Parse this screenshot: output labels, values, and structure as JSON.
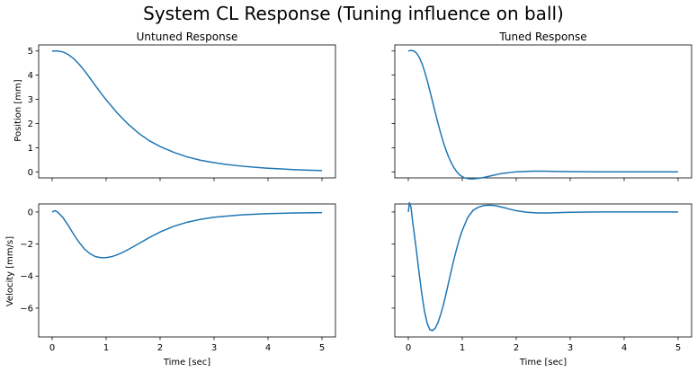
{
  "suptitle": "System CL Response (Tuning influence on ball)",
  "colors": {
    "line": "#1f77b4",
    "frame": "#000000"
  },
  "chart_data": [
    {
      "id": "untuned-position",
      "type": "line",
      "title": "Untuned Response",
      "xlabel": "",
      "ylabel": "Position [mm]",
      "xlim": [
        -0.25,
        5.25
      ],
      "ylim": [
        -0.25,
        5.25
      ],
      "xticks": [
        0,
        1,
        2,
        3,
        4,
        5
      ],
      "xtick_labels_visible": false,
      "yticks": [
        0,
        1,
        2,
        3,
        4,
        5
      ],
      "ytick_labels": [
        "0",
        "1",
        "2",
        "3",
        "4",
        "5"
      ],
      "series": [
        {
          "name": "position",
          "x": [
            0,
            0.1,
            0.2,
            0.3,
            0.4,
            0.5,
            0.6,
            0.7,
            0.8,
            0.9,
            1.0,
            1.2,
            1.4,
            1.6,
            1.8,
            2.0,
            2.25,
            2.5,
            2.75,
            3.0,
            3.25,
            3.5,
            3.75,
            4.0,
            4.25,
            4.5,
            4.75,
            5.0
          ],
          "y": [
            5.0,
            5.0,
            4.96,
            4.85,
            4.68,
            4.45,
            4.18,
            3.88,
            3.57,
            3.27,
            2.98,
            2.45,
            1.99,
            1.6,
            1.29,
            1.05,
            0.81,
            0.62,
            0.48,
            0.38,
            0.3,
            0.24,
            0.19,
            0.15,
            0.12,
            0.09,
            0.07,
            0.05
          ]
        }
      ]
    },
    {
      "id": "tuned-position",
      "type": "line",
      "title": "Tuned Response",
      "xlabel": "",
      "ylabel": "",
      "xlim": [
        -0.25,
        5.25
      ],
      "ylim": [
        -0.25,
        5.25
      ],
      "xticks": [
        0,
        1,
        2,
        3,
        4,
        5
      ],
      "xtick_labels_visible": false,
      "yticks": [
        0,
        1,
        2,
        3,
        4,
        5
      ],
      "ytick_labels_visible": false,
      "series": [
        {
          "name": "position",
          "x": [
            0,
            0.05,
            0.1,
            0.15,
            0.2,
            0.25,
            0.3,
            0.35,
            0.4,
            0.45,
            0.5,
            0.55,
            0.6,
            0.65,
            0.7,
            0.75,
            0.8,
            0.85,
            0.9,
            0.95,
            1.0,
            1.05,
            1.1,
            1.15,
            1.2,
            1.25,
            1.3,
            1.4,
            1.5,
            1.6,
            1.7,
            1.8,
            1.9,
            2.0,
            2.1,
            2.2,
            2.3,
            2.4,
            2.5,
            2.7,
            3.0,
            3.5,
            4.0,
            4.5,
            5.0
          ],
          "y": [
            5.0,
            5.02,
            5.0,
            4.92,
            4.75,
            4.5,
            4.17,
            3.78,
            3.35,
            2.9,
            2.45,
            2.01,
            1.6,
            1.22,
            0.89,
            0.6,
            0.36,
            0.16,
            0.0,
            -0.12,
            -0.2,
            -0.25,
            -0.28,
            -0.29,
            -0.29,
            -0.28,
            -0.27,
            -0.23,
            -0.18,
            -0.13,
            -0.08,
            -0.05,
            -0.02,
            0.0,
            0.01,
            0.02,
            0.03,
            0.03,
            0.03,
            0.02,
            0.01,
            0.0,
            0.0,
            0.0,
            0.0
          ]
        }
      ]
    },
    {
      "id": "untuned-velocity",
      "type": "line",
      "title": "",
      "xlabel": "Time [sec]",
      "ylabel": "Velocity [mm/s]",
      "xlim": [
        -0.25,
        5.25
      ],
      "ylim": [
        -7.8,
        0.5
      ],
      "xticks": [
        0,
        1,
        2,
        3,
        4,
        5
      ],
      "xtick_labels": [
        "0",
        "1",
        "2",
        "3",
        "4",
        "5"
      ],
      "yticks": [
        0,
        -2,
        -4,
        -6
      ],
      "ytick_labels": [
        "0",
        "−2",
        "−4",
        "−6"
      ],
      "series": [
        {
          "name": "velocity",
          "x": [
            0,
            0.05,
            0.1,
            0.2,
            0.3,
            0.4,
            0.5,
            0.6,
            0.7,
            0.8,
            0.9,
            1.0,
            1.1,
            1.2,
            1.3,
            1.4,
            1.6,
            1.8,
            2.0,
            2.25,
            2.5,
            2.75,
            3.0,
            3.5,
            4.0,
            4.5,
            5.0
          ],
          "y": [
            0.0,
            0.08,
            0.0,
            -0.35,
            -0.85,
            -1.4,
            -1.9,
            -2.32,
            -2.6,
            -2.78,
            -2.85,
            -2.85,
            -2.79,
            -2.68,
            -2.53,
            -2.36,
            -1.98,
            -1.6,
            -1.25,
            -0.9,
            -0.64,
            -0.46,
            -0.33,
            -0.18,
            -0.1,
            -0.06,
            -0.04
          ]
        }
      ]
    },
    {
      "id": "tuned-velocity",
      "type": "line",
      "title": "",
      "xlabel": "Time [sec]",
      "ylabel": "",
      "xlim": [
        -0.25,
        5.25
      ],
      "ylim": [
        -7.8,
        0.5
      ],
      "xticks": [
        0,
        1,
        2,
        3,
        4,
        5
      ],
      "xtick_labels": [
        "0",
        "1",
        "2",
        "3",
        "4",
        "5"
      ],
      "yticks": [
        0,
        -2,
        -4,
        -6
      ],
      "ytick_labels_visible": false,
      "series": [
        {
          "name": "velocity",
          "x": [
            0,
            0.02,
            0.05,
            0.08,
            0.1,
            0.15,
            0.2,
            0.25,
            0.3,
            0.35,
            0.4,
            0.45,
            0.5,
            0.55,
            0.6,
            0.65,
            0.7,
            0.75,
            0.8,
            0.85,
            0.9,
            0.95,
            1.0,
            1.1,
            1.2,
            1.3,
            1.4,
            1.5,
            1.6,
            1.7,
            1.8,
            1.9,
            2.0,
            2.2,
            2.4,
            2.6,
            2.8,
            3.0,
            3.5,
            4.0,
            4.5,
            5.0
          ],
          "y": [
            0.0,
            0.6,
            0.3,
            -0.6,
            -1.1,
            -2.4,
            -3.8,
            -5.1,
            -6.2,
            -6.95,
            -7.35,
            -7.4,
            -7.25,
            -6.9,
            -6.4,
            -5.8,
            -5.1,
            -4.35,
            -3.6,
            -2.9,
            -2.25,
            -1.65,
            -1.15,
            -0.35,
            0.1,
            0.3,
            0.4,
            0.42,
            0.4,
            0.33,
            0.25,
            0.16,
            0.08,
            -0.02,
            -0.06,
            -0.06,
            -0.04,
            -0.02,
            0.0,
            0.0,
            0.0,
            0.0
          ]
        }
      ]
    }
  ]
}
